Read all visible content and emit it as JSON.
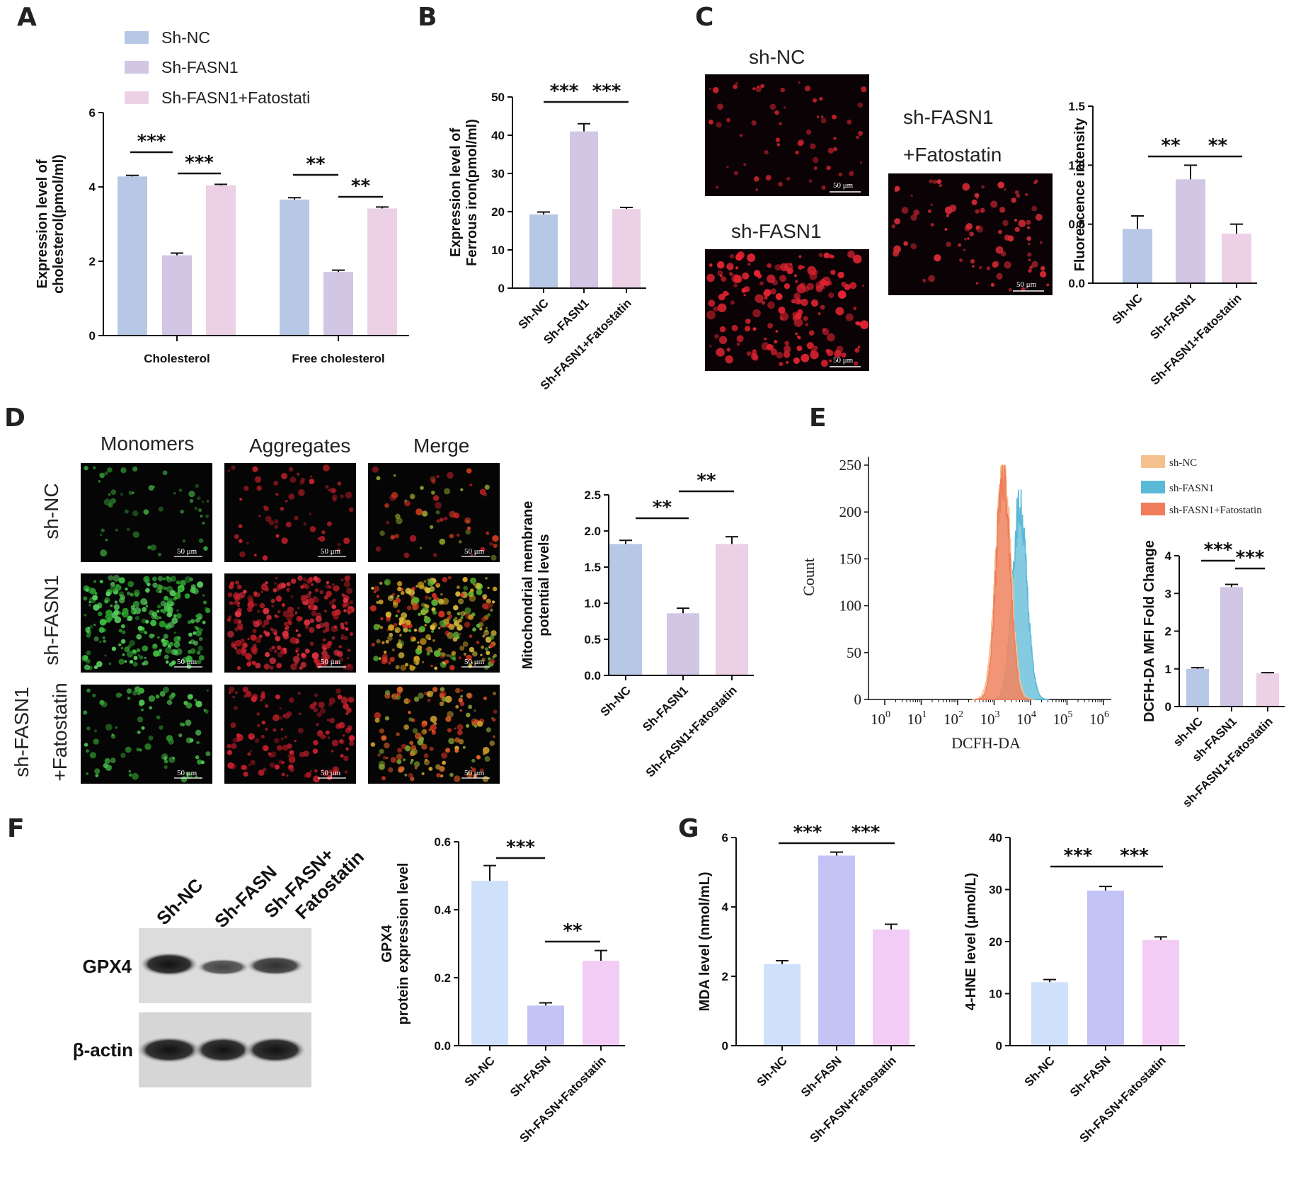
{
  "panels": {
    "A": "A",
    "B": "B",
    "C": "C",
    "D": "D",
    "E": "E",
    "F": "F",
    "G": "G"
  },
  "colors": {
    "blue": "#b7c8e6",
    "lavender": "#d1c6e4",
    "pink": "#ecd0e6",
    "g_blue": "#cfe0fa",
    "g_purple": "#c4c3f5",
    "g_pink": "#f3ccf6",
    "e_nc": "#f4c08e",
    "e_fasn": "#5bb9d8",
    "e_fato": "#ef7d5c"
  },
  "microscopy": {
    "c_labels": {
      "nc": "sh-NC",
      "fasn": "sh-FASN1",
      "fato1": "sh-FASN1",
      "fato2": "+Fatostatin"
    },
    "scale_bar": "50 μm",
    "d_cols": [
      "Monomers",
      "Aggregates",
      "Merge"
    ],
    "d_rows": {
      "nc": "sh-NC",
      "fasn": "sh-FASN1",
      "fato1": "sh-FASN1",
      "fato2": "+Fatostatin"
    }
  },
  "blot": {
    "lanes": [
      "Sh-NC",
      "Sh-FASN",
      "Sh-FASN+",
      "Fatostatin"
    ],
    "rows": [
      "GPX4",
      "β-actin"
    ]
  },
  "chart_data": [
    {
      "id": "A",
      "type": "bar",
      "ylabel": "Expression level of cholesterol(pmol/ml)",
      "ylim": [
        0,
        6
      ],
      "yticks": [
        "0",
        "2",
        "4",
        "6"
      ],
      "categories": [
        "Cholesterol",
        "Free cholesterol"
      ],
      "series": [
        {
          "name": "Sh-NC",
          "values": [
            4.28,
            3.66
          ],
          "errors": [
            0.03,
            0.05
          ]
        },
        {
          "name": "Sh-FASN1",
          "values": [
            2.16,
            1.71
          ],
          "errors": [
            0.06,
            0.05
          ]
        },
        {
          "name": "Sh-FASN1+Fatostati",
          "values": [
            4.04,
            3.42
          ],
          "errors": [
            0.03,
            0.04
          ]
        }
      ],
      "significance": [
        "***",
        "***",
        "**",
        "**"
      ]
    },
    {
      "id": "B",
      "type": "bar",
      "ylabel": "Expression level of Ferrous iron(pmol/ml)",
      "ylim": [
        0,
        50
      ],
      "yticks": [
        "0",
        "10",
        "20",
        "30",
        "40",
        "50"
      ],
      "categories": [
        "Sh-NC",
        "Sh-FASN1",
        "Sh-FASN1+Fatostatin"
      ],
      "values": [
        19.3,
        41,
        20.7
      ],
      "errors": [
        0.6,
        2,
        0.4
      ],
      "significance": [
        "***",
        "***"
      ]
    },
    {
      "id": "C",
      "type": "bar",
      "ylabel": "Fluorescence intensity",
      "ylim": [
        0,
        1.5
      ],
      "yticks": [
        "0.0",
        "0.5",
        "1.0",
        "1.5"
      ],
      "categories": [
        "Sh-NC",
        "Sh-FASN1",
        "Sh-FASN1+Fatostatin"
      ],
      "values": [
        0.46,
        0.88,
        0.42
      ],
      "errors": [
        0.11,
        0.12,
        0.08
      ],
      "significance": [
        "**",
        "**"
      ]
    },
    {
      "id": "D",
      "type": "bar",
      "ylabel": "Mitochondrial membrane potential levels",
      "ylim": [
        0,
        2.5
      ],
      "yticks": [
        "0.0",
        "0.5",
        "1.0",
        "1.5",
        "2.0",
        "2.5"
      ],
      "categories": [
        "Sh-NC",
        "Sh-FASN1",
        "Sh-FASN1+Fatostatin"
      ],
      "values": [
        1.82,
        0.86,
        1.82
      ],
      "errors": [
        0.05,
        0.07,
        0.1
      ],
      "significance": [
        "**",
        "**"
      ]
    },
    {
      "id": "E_hist",
      "type": "area",
      "xlabel": "DCFH-DA",
      "ylabel": "Count",
      "ylim": [
        0,
        250
      ],
      "yticks": [
        "0",
        "50",
        "100",
        "150",
        "200",
        "250"
      ],
      "x_log_range": [
        0,
        6
      ],
      "series": [
        {
          "name": "sh-NC",
          "peak_log": 3.25,
          "peak_count": 245,
          "width": 0.21
        },
        {
          "name": "sh-FASN1",
          "peak_log": 3.7,
          "peak_count": 205,
          "width": 0.2
        },
        {
          "name": "sh-FASN1+Fatostatin",
          "peak_log": 3.25,
          "peak_count": 240,
          "width": 0.19
        }
      ]
    },
    {
      "id": "E_bar",
      "type": "bar",
      "ylabel": "DCFH-DA MFI Fold Change",
      "ylim": [
        0,
        4
      ],
      "yticks": [
        "0",
        "1",
        "2",
        "3",
        "4"
      ],
      "categories": [
        "sh-NC",
        "sh-FASN1",
        "sh-FASN1+Fatostatin"
      ],
      "values": [
        1.0,
        3.17,
        0.88
      ],
      "errors": [
        0.03,
        0.07,
        0.02
      ],
      "significance": [
        "***",
        "***"
      ]
    },
    {
      "id": "F",
      "type": "bar",
      "ylabel": "GPX4 protein expression level",
      "ylim": [
        0,
        0.6
      ],
      "yticks": [
        "0.0",
        "0.2",
        "0.4",
        "0.6"
      ],
      "categories": [
        "Sh-NC",
        "Sh-FASN",
        "Sh-FASN+Fatostatin"
      ],
      "values": [
        0.485,
        0.118,
        0.25
      ],
      "errors": [
        0.045,
        0.008,
        0.03
      ],
      "significance": [
        "***",
        "**"
      ]
    },
    {
      "id": "G1",
      "type": "bar",
      "ylabel": "MDA level (nmol/mL)",
      "ylim": [
        0,
        6
      ],
      "yticks": [
        "0",
        "2",
        "4",
        "6"
      ],
      "categories": [
        "Sh-NC",
        "Sh-FASN",
        "Sh-FASN+Fatostatin"
      ],
      "values": [
        2.35,
        5.48,
        3.35
      ],
      "errors": [
        0.1,
        0.1,
        0.15
      ],
      "significance": [
        "***",
        "***"
      ]
    },
    {
      "id": "G2",
      "type": "bar",
      "ylabel": "4-HNE level (μmol/L)",
      "ylim": [
        0,
        40
      ],
      "yticks": [
        "0",
        "10",
        "20",
        "30",
        "40"
      ],
      "categories": [
        "Sh-NC",
        "Sh-FASN",
        "Sh-FASN+Fatostatin"
      ],
      "values": [
        12.2,
        29.8,
        20.3
      ],
      "errors": [
        0.5,
        0.8,
        0.6
      ],
      "significance": [
        "***",
        "***"
      ]
    }
  ]
}
